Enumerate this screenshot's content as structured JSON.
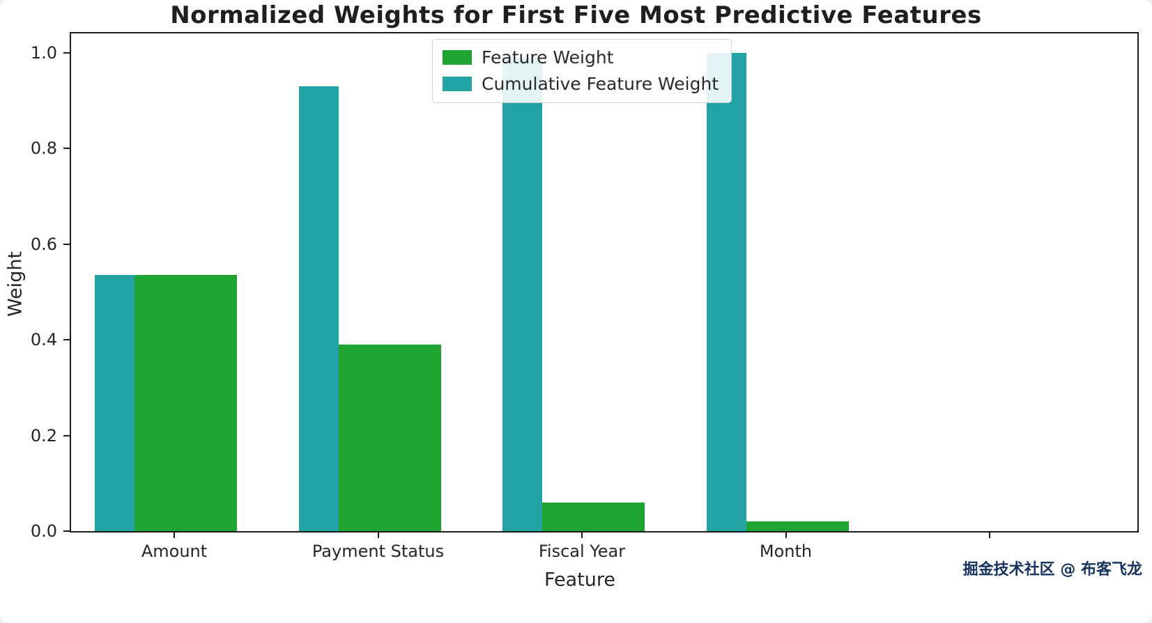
{
  "chart_data": {
    "type": "bar",
    "title": "Normalized Weights for First Five Most Predictive Features",
    "xlabel": "Feature",
    "ylabel": "Weight",
    "categories": [
      "Amount",
      "Payment Status",
      "Fiscal Year",
      "Month",
      ""
    ],
    "series": [
      {
        "name": "Feature Weight",
        "color": "#1fa432",
        "values": [
          0.535,
          0.39,
          0.06,
          0.02,
          null
        ]
      },
      {
        "name": "Cumulative Feature Weight",
        "color": "#23a3a3",
        "values": [
          0.535,
          0.93,
          0.99,
          1.0,
          null
        ]
      }
    ],
    "ylim": [
      0,
      1.04
    ],
    "yticks": [
      0.0,
      0.2,
      0.4,
      0.6,
      0.8,
      1.0
    ],
    "ytick_labels": [
      "0.0",
      "0.2",
      "0.4",
      "0.6",
      "0.8",
      "1.0"
    ],
    "legend_position": "upper center",
    "grid": false
  },
  "watermark": {
    "text": "掘金技术社区 @ 布客飞龙",
    "color": "#16335e"
  }
}
